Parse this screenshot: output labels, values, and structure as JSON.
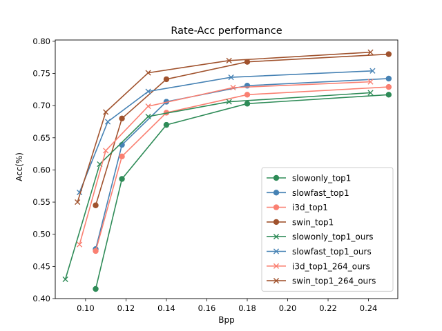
{
  "chart_data": {
    "type": "line",
    "title": "Rate-Acc performance",
    "xlabel": "Bpp",
    "ylabel": "Acc(%)",
    "xlim": [
      0.085,
      0.2545
    ],
    "ylim": [
      0.4,
      0.802
    ],
    "xticks": [
      0.1,
      0.12,
      0.14,
      0.16,
      0.18,
      0.2,
      0.22,
      0.24
    ],
    "xtick_labels": [
      "0.10",
      "0.12",
      "0.14",
      "0.16",
      "0.18",
      "0.20",
      "0.22",
      "0.24"
    ],
    "yticks": [
      0.4,
      0.45,
      0.5,
      0.55,
      0.6,
      0.65,
      0.7,
      0.75,
      0.8
    ],
    "ytick_labels": [
      "0.40",
      "0.45",
      "0.50",
      "0.55",
      "0.60",
      "0.65",
      "0.70",
      "0.75",
      "0.80"
    ],
    "grid": false,
    "legend_position": "lower-right",
    "series": [
      {
        "name": "slowonly_top1",
        "color": "#2e8b57",
        "marker": "circle",
        "x": [
          0.105,
          0.118,
          0.14,
          0.18,
          0.25
        ],
        "y": [
          0.415,
          0.586,
          0.67,
          0.703,
          0.717
        ]
      },
      {
        "name": "slowfast_top1",
        "color": "#4682b4",
        "marker": "circle",
        "x": [
          0.105,
          0.118,
          0.14,
          0.18,
          0.25
        ],
        "y": [
          0.477,
          0.639,
          0.706,
          0.731,
          0.742
        ]
      },
      {
        "name": "i3d_top1",
        "color": "#fa8072",
        "marker": "circle",
        "x": [
          0.105,
          0.118,
          0.14,
          0.18,
          0.25
        ],
        "y": [
          0.474,
          0.621,
          0.689,
          0.717,
          0.729
        ]
      },
      {
        "name": "swin_top1",
        "color": "#a0522d",
        "marker": "circle",
        "x": [
          0.105,
          0.118,
          0.14,
          0.18,
          0.25
        ],
        "y": [
          0.545,
          0.68,
          0.741,
          0.768,
          0.78
        ]
      },
      {
        "name": "slowonly_top1_ours",
        "color": "#2e8b57",
        "marker": "x",
        "x": [
          0.09,
          0.107,
          0.131,
          0.171,
          0.241
        ],
        "y": [
          0.43,
          0.609,
          0.683,
          0.706,
          0.72
        ]
      },
      {
        "name": "slowfast_top1_ours",
        "color": "#4682b4",
        "marker": "x",
        "x": [
          0.097,
          0.111,
          0.131,
          0.172,
          0.242
        ],
        "y": [
          0.565,
          0.675,
          0.722,
          0.744,
          0.754
        ]
      },
      {
        "name": "i3d_top1_264_ours",
        "color": "#fa8072",
        "marker": "x",
        "x": [
          0.097,
          0.11,
          0.131,
          0.173,
          0.241
        ],
        "y": [
          0.484,
          0.63,
          0.699,
          0.728,
          0.737
        ]
      },
      {
        "name": "swin_top1_264_ours",
        "color": "#a0522d",
        "marker": "x",
        "x": [
          0.096,
          0.11,
          0.131,
          0.171,
          0.241
        ],
        "y": [
          0.55,
          0.69,
          0.751,
          0.77,
          0.783
        ]
      }
    ]
  }
}
